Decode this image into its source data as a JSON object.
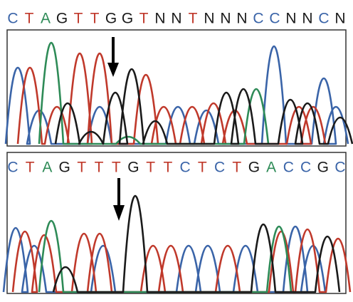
{
  "panels": [
    {
      "bases": [
        "C",
        "T",
        "A",
        "G",
        "T",
        "T",
        "G",
        "G",
        "T",
        "N",
        "N",
        "T",
        "N",
        "N",
        "N",
        "C",
        "C",
        "N",
        "N",
        "C",
        "N"
      ]
    },
    {
      "bases": [
        "C",
        "T",
        "A",
        "G",
        "T",
        "T",
        "T",
        "G",
        "T",
        "T",
        "C",
        "T",
        "C",
        "T",
        "G",
        "A",
        "C",
        "C",
        "G",
        "C"
      ]
    }
  ],
  "base_colors": {
    "A": "#2e8b57",
    "C": "#3a64a8",
    "G": "#1a1a1a",
    "T": "#c0392b",
    "N": "#1a1a1a"
  }
}
